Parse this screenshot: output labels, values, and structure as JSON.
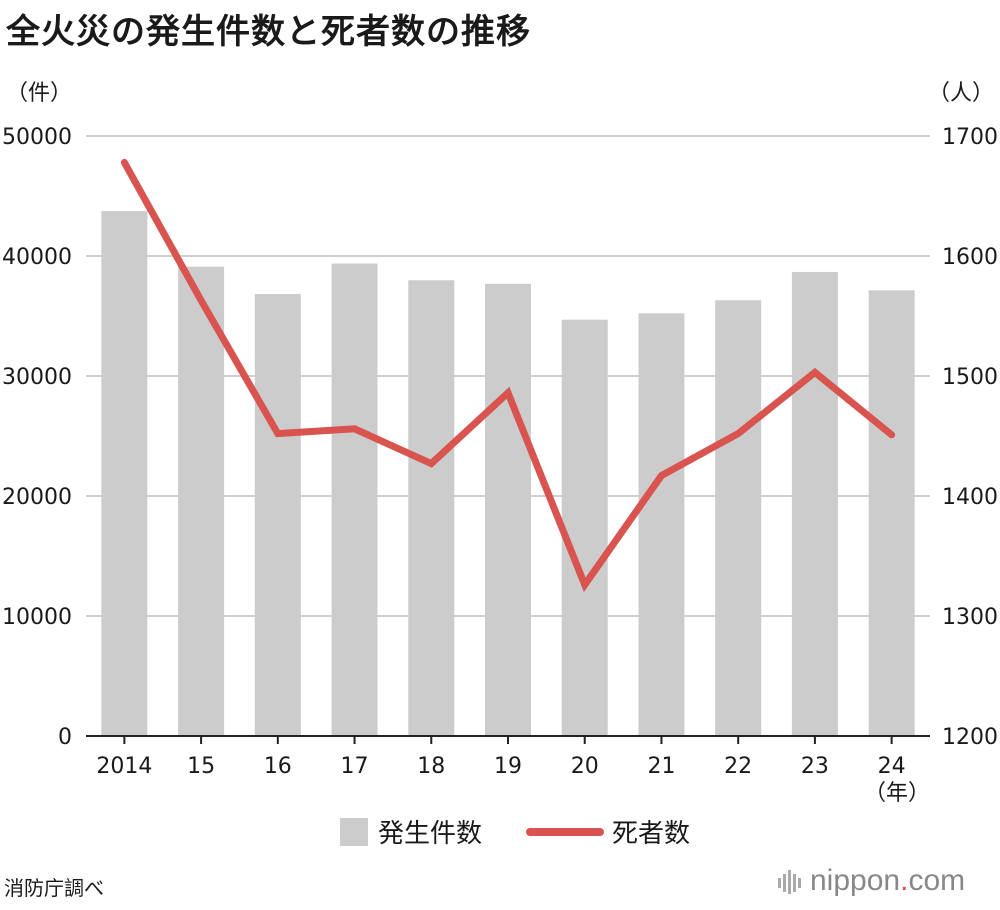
{
  "title": "全火災の発生件数と死者数の推移",
  "source": "消防庁調べ",
  "brand": {
    "name": "nippon",
    "dot": ".",
    "tld": "com"
  },
  "colors": {
    "bar": "#cccccc",
    "line": "#d9534f",
    "grid": "#cfcfcf",
    "axis": "#222222"
  },
  "chart_data": {
    "type": "bar+line",
    "categories": [
      "2014",
      "15",
      "16",
      "17",
      "18",
      "19",
      "20",
      "21",
      "22",
      "23",
      "24"
    ],
    "x_unit": "（年）",
    "y_left": {
      "unit": "（件）",
      "ylim": [
        0,
        50000
      ],
      "ticks": [
        0,
        10000,
        20000,
        30000,
        40000,
        50000
      ]
    },
    "y_right": {
      "unit": "（人）",
      "ylim": [
        1200,
        1700
      ],
      "ticks": [
        1200,
        1300,
        1400,
        1500,
        1600,
        1700
      ]
    },
    "grid": true,
    "legend_position": "bottom-center",
    "series": [
      {
        "name": "発生件数",
        "type": "bar",
        "axis": "left",
        "values": [
          43741,
          39111,
          36831,
          39373,
          37981,
          37683,
          34691,
          35222,
          36314,
          38672,
          37141
        ]
      },
      {
        "name": "死者数",
        "type": "line",
        "axis": "right",
        "values": [
          1678,
          1563,
          1452,
          1456,
          1427,
          1486,
          1326,
          1417,
          1452,
          1503,
          1451
        ]
      }
    ]
  }
}
